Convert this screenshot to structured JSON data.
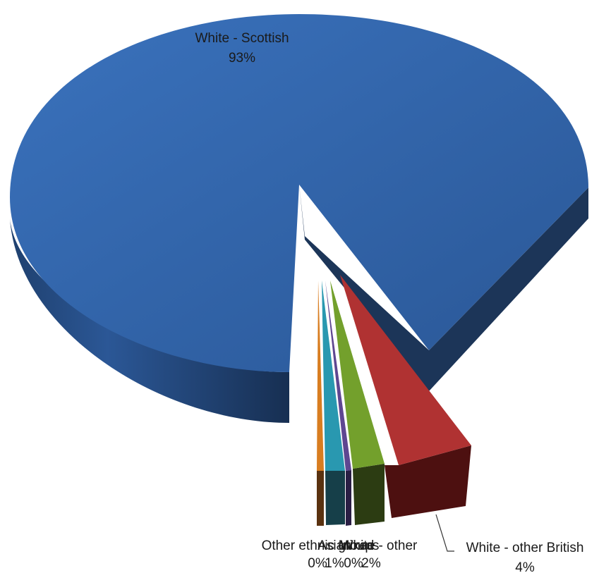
{
  "chart_data": {
    "type": "pie",
    "style": "3d-exploded",
    "slices": [
      {
        "label": "White - Scottish",
        "value": 93,
        "percent_label": "93%",
        "color": "#2f63a8"
      },
      {
        "label": "White - other British",
        "value": 4,
        "percent_label": "4%",
        "color": "#a82b2b"
      },
      {
        "label": "White - other",
        "value": 2,
        "percent_label": "2%",
        "color": "#6e9a2a"
      },
      {
        "label": "Mixed",
        "value": 0,
        "percent_label": "0%",
        "color": "#5b3f8c"
      },
      {
        "label": "Asian",
        "value": 1,
        "percent_label": "1%",
        "color": "#2590a8"
      },
      {
        "label": "Other ethnic groups",
        "value": 0,
        "percent_label": "0%",
        "color": "#d47a1f"
      }
    ]
  }
}
